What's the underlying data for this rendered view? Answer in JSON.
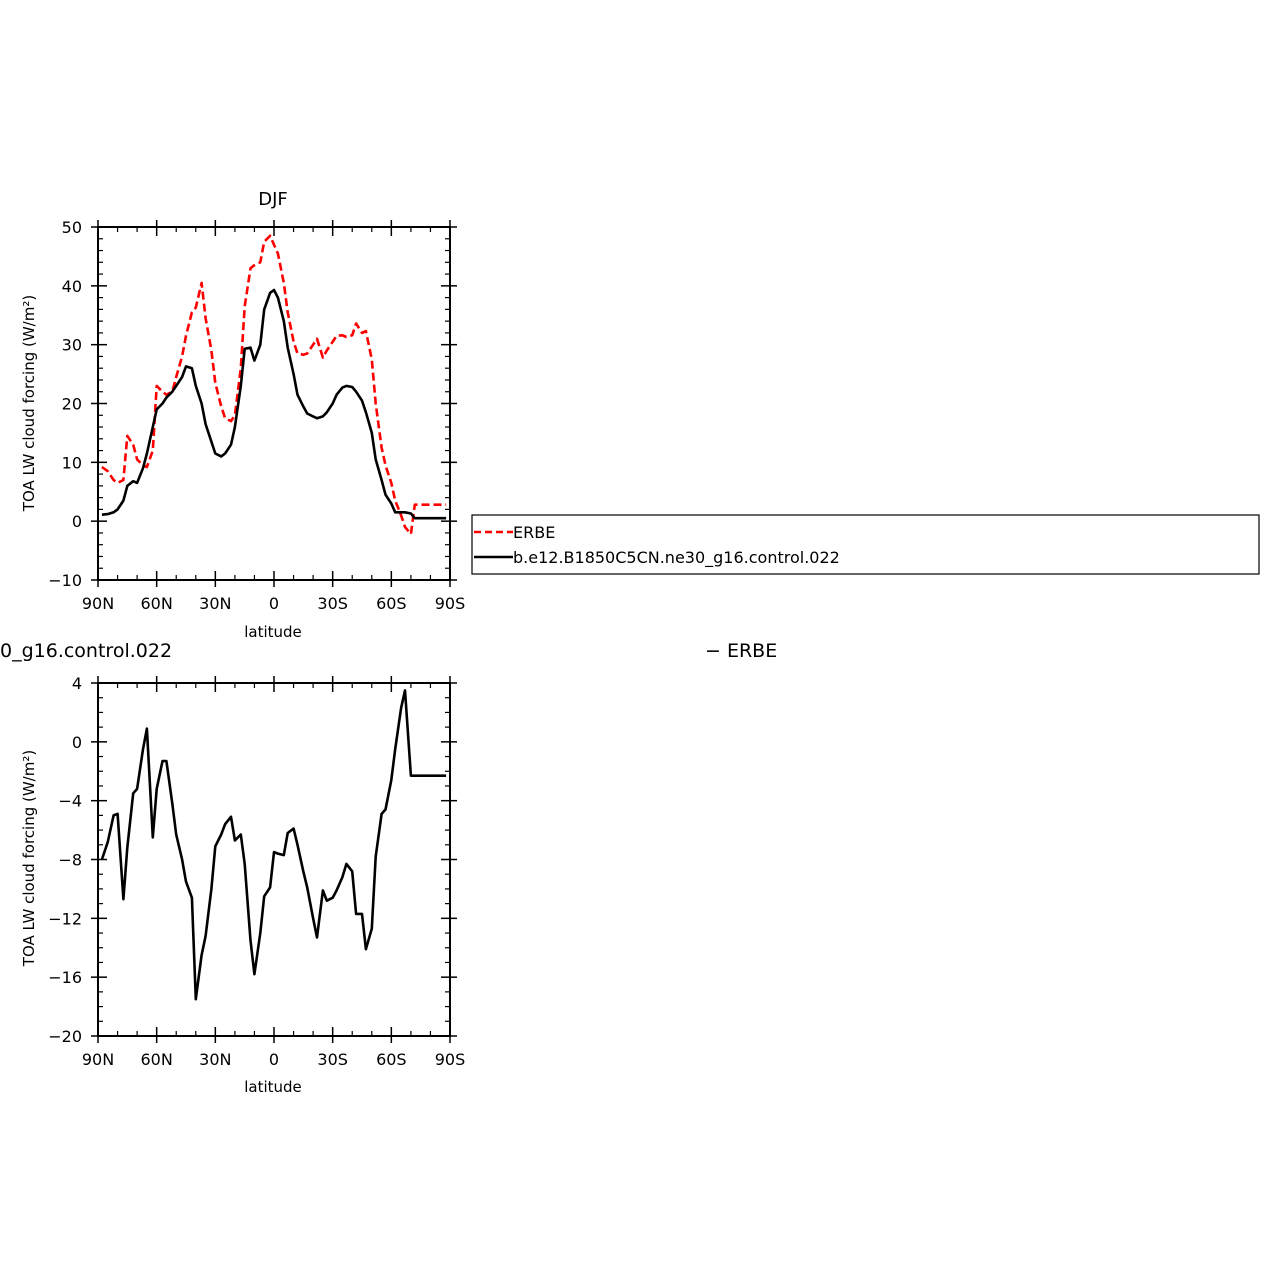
{
  "chart_data": [
    {
      "type": "line",
      "title": "DJF",
      "xlabel": "latitude",
      "ylabel": "TOA LW cloud forcing (W/m²)",
      "xticks": [
        "90N",
        "60N",
        "30N",
        "0",
        "30S",
        "60S",
        "90S"
      ],
      "xtick_values": [
        90,
        60,
        30,
        0,
        -30,
        -60,
        -90
      ],
      "xlim": [
        90,
        -90
      ],
      "ylim": [
        -10,
        50
      ],
      "yticks": [
        -10,
        0,
        10,
        20,
        30,
        40,
        50
      ],
      "legend": {
        "position": "right",
        "entries": [
          "ERBE",
          "b.e12.B1850C5CN.ne30_g16.control.022"
        ]
      },
      "series": [
        {
          "name": "ERBE",
          "color": "#ff0000",
          "dash": "dashed",
          "x": [
            88,
            85,
            82,
            80,
            77,
            75,
            72,
            70,
            67,
            65,
            62,
            60,
            57,
            55,
            52,
            50,
            47,
            45,
            42,
            40,
            37,
            35,
            32,
            30,
            27,
            25,
            22,
            20,
            17,
            15,
            12,
            10,
            7,
            5,
            2,
            0,
            -2,
            -5,
            -7,
            -10,
            -12,
            -15,
            -17,
            -20,
            -22,
            -25,
            -27,
            -30,
            -32,
            -35,
            -37,
            -40,
            -42,
            -45,
            -47,
            -50,
            -52,
            -55,
            -57,
            -60,
            -62,
            -65,
            -67,
            -70,
            -72,
            -75,
            -77,
            -80,
            -82,
            -85,
            -87,
            -88
          ],
          "y": [
            9.2,
            8.5,
            7.0,
            6.5,
            7.0,
            14.5,
            13.0,
            10.5,
            9.5,
            9.2,
            12.0,
            23.0,
            22.0,
            21.5,
            22.0,
            24.5,
            28.0,
            31.5,
            35.5,
            36.3,
            40.5,
            34.5,
            29.0,
            23.5,
            19.5,
            17.5,
            17.0,
            18.0,
            26.0,
            36.5,
            43.0,
            43.5,
            44.0,
            47.5,
            48.5,
            47.0,
            45.5,
            40.5,
            35.5,
            30.5,
            28.5,
            28.3,
            28.5,
            30.0,
            31.0,
            27.8,
            29.0,
            30.5,
            31.5,
            31.6,
            31.3,
            31.6,
            33.6,
            32.0,
            32.3,
            27.5,
            20.0,
            12.5,
            9.5,
            6.5,
            3.5,
            1.0,
            -1.0,
            -2.2,
            2.8,
            2.8,
            2.8,
            2.8,
            2.8,
            2.8,
            2.8,
            2.8
          ]
        },
        {
          "name": "b.e12.B1850C5CN.ne30_g16.control.022",
          "color": "#000000",
          "dash": "solid",
          "x": [
            88,
            85,
            82,
            80,
            77,
            75,
            72,
            70,
            67,
            65,
            62,
            60,
            57,
            55,
            52,
            50,
            47,
            45,
            42,
            40,
            37,
            35,
            32,
            30,
            27,
            25,
            22,
            20,
            17,
            15,
            12,
            10,
            7,
            5,
            2,
            0,
            -2,
            -5,
            -7,
            -10,
            -12,
            -15,
            -17,
            -20,
            -22,
            -25,
            -27,
            -30,
            -32,
            -35,
            -37,
            -40,
            -42,
            -45,
            -47,
            -50,
            -52,
            -55,
            -57,
            -60,
            -62,
            -65,
            -67,
            -70,
            -72,
            -75,
            -77,
            -80,
            -82,
            -85,
            -87,
            -88
          ],
          "y": [
            1.1,
            1.2,
            1.5,
            2.0,
            3.5,
            6.0,
            6.8,
            6.5,
            9.0,
            11.5,
            16.0,
            19.0,
            20.0,
            21.0,
            22.0,
            23.0,
            24.5,
            26.3,
            26.0,
            23.0,
            20.0,
            16.5,
            13.5,
            11.5,
            11.0,
            11.5,
            13.0,
            16.0,
            23.0,
            29.3,
            29.5,
            27.3,
            30.0,
            36.0,
            38.8,
            39.3,
            38.0,
            34.0,
            29.5,
            25.0,
            21.5,
            19.5,
            18.3,
            17.8,
            17.5,
            17.8,
            18.5,
            20.0,
            21.5,
            22.7,
            23.0,
            22.8,
            22.0,
            20.5,
            18.5,
            15.0,
            10.5,
            7.0,
            4.5,
            3.0,
            1.5,
            1.5,
            1.5,
            1.3,
            0.5,
            0.5,
            0.5,
            0.5,
            0.5,
            0.5,
            0.5,
            0.5
          ]
        }
      ]
    },
    {
      "type": "line",
      "title_left": "0_g16.control.022",
      "title_right": "− ERBE",
      "xlabel": "latitude",
      "ylabel": "TOA LW cloud forcing (W/m²)",
      "xticks": [
        "90N",
        "60N",
        "30N",
        "0",
        "30S",
        "60S",
        "90S"
      ],
      "xtick_values": [
        90,
        60,
        30,
        0,
        -30,
        -60,
        -90
      ],
      "xlim": [
        90,
        -90
      ],
      "ylim": [
        -20,
        4
      ],
      "yticks": [
        -20,
        -16,
        -12,
        -8,
        -4,
        0,
        4
      ],
      "series": [
        {
          "color": "#000000",
          "dash": "solid",
          "x": [
            88,
            85,
            82,
            80,
            77,
            75,
            72,
            70,
            67,
            65,
            62,
            60,
            57,
            55,
            52,
            50,
            47,
            45,
            42,
            40,
            37,
            35,
            32,
            30,
            27,
            25,
            22,
            20,
            17,
            15,
            12,
            10,
            7,
            5,
            2,
            0,
            -2,
            -5,
            -7,
            -10,
            -12,
            -15,
            -17,
            -20,
            -22,
            -25,
            -27,
            -30,
            -32,
            -35,
            -37,
            -40,
            -42,
            -45,
            -47,
            -50,
            -52,
            -55,
            -57,
            -60,
            -62,
            -65,
            -67,
            -70,
            -72,
            -75,
            -77,
            -80,
            -82,
            -85,
            -87,
            -88
          ],
          "y": [
            -8.0,
            -6.8,
            -5.0,
            -4.9,
            -10.7,
            -7.2,
            -3.5,
            -3.2,
            -0.5,
            0.9,
            -6.5,
            -3.2,
            -1.3,
            -1.3,
            -4.2,
            -6.3,
            -8.0,
            -9.5,
            -10.6,
            -17.5,
            -14.5,
            -13.2,
            -10.0,
            -7.1,
            -6.3,
            -5.6,
            -5.1,
            -6.7,
            -6.3,
            -8.3,
            -13.5,
            -15.8,
            -13.0,
            -10.5,
            -9.9,
            -7.5,
            -7.6,
            -7.7,
            -6.2,
            -5.9,
            -7.0,
            -8.8,
            -9.9,
            -12.0,
            -13.3,
            -10.1,
            -10.8,
            -10.6,
            -10.1,
            -9.2,
            -8.3,
            -8.8,
            -11.7,
            -11.7,
            -14.1,
            -12.7,
            -7.8,
            -4.9,
            -4.6,
            -2.6,
            -0.5,
            2.3,
            3.5,
            -2.3,
            -2.3,
            -2.3,
            -2.3,
            -2.3,
            -2.3,
            -2.3,
            -2.3,
            -2.3
          ]
        }
      ]
    }
  ]
}
